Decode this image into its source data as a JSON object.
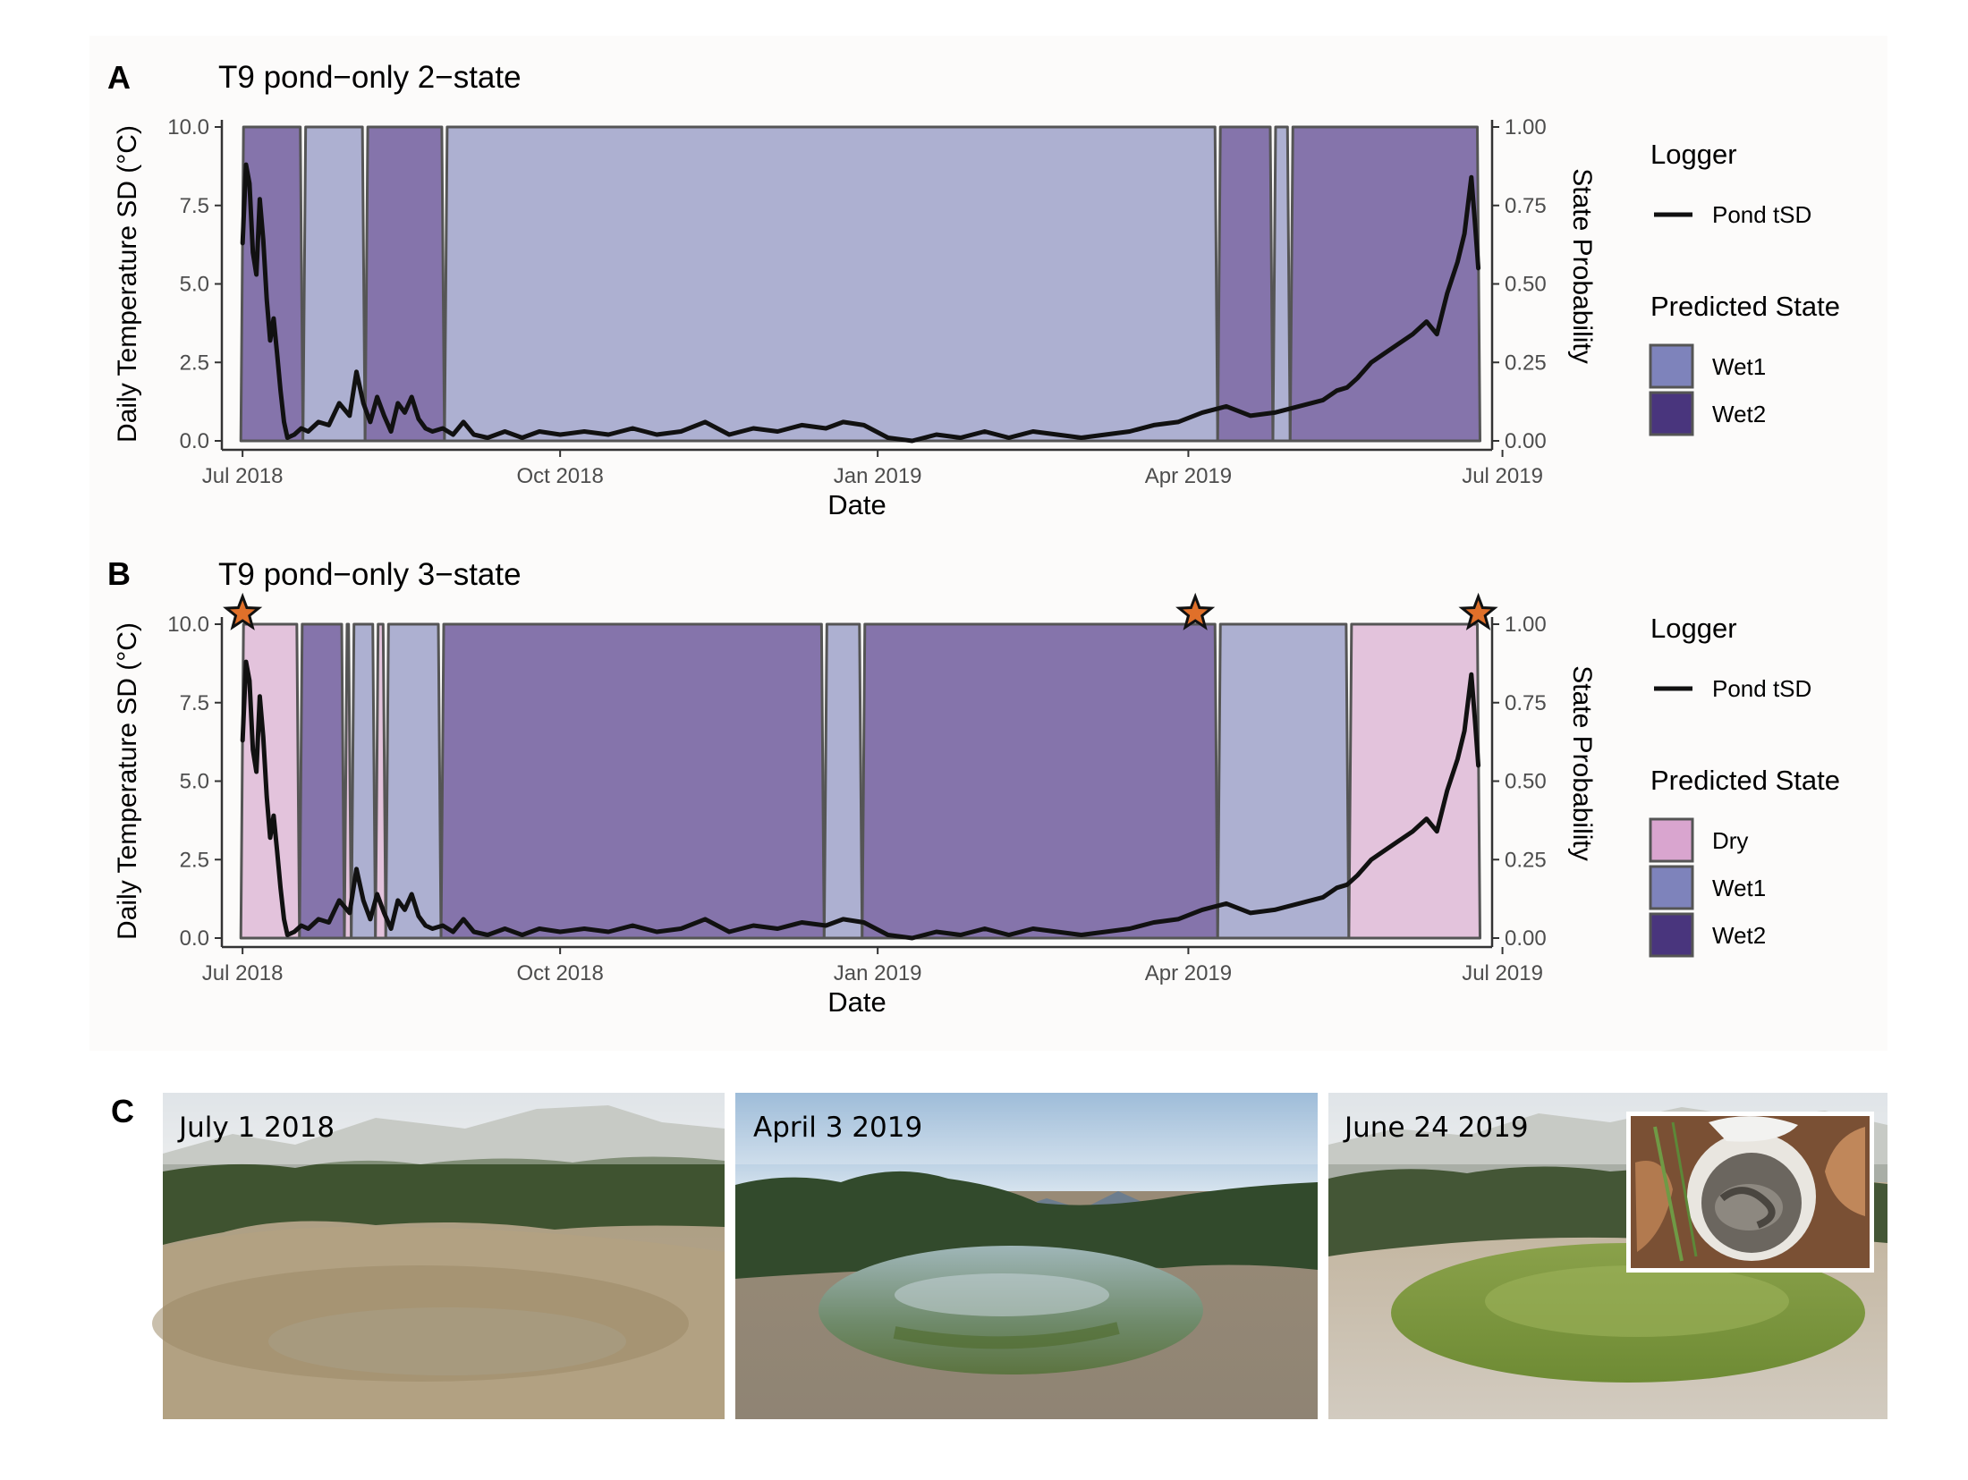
{
  "panels": {
    "a": {
      "letter": "A",
      "title": "T9 pond−only 2−state"
    },
    "b": {
      "letter": "B",
      "title": "T9 pond−only 3−state"
    },
    "c": {
      "letter": "C"
    }
  },
  "axes": {
    "y_left_label": "Daily Temperature SD (°C)",
    "y_right_label": "State Probability",
    "x_label": "Date",
    "x_ticks": [
      "Jul 2018",
      "Oct 2018",
      "Jan 2019",
      "Apr 2019",
      "Jul 2019"
    ],
    "y_left_ticks": [
      "0.0",
      "2.5",
      "5.0",
      "7.5",
      "10.0"
    ],
    "y_right_ticks": [
      "0.00",
      "0.25",
      "0.50",
      "0.75",
      "1.00"
    ]
  },
  "legend": {
    "logger_title": "Logger",
    "logger_item": "Pond tSD",
    "state_title": "Predicted State",
    "states_a": [
      "Wet1",
      "Wet2"
    ],
    "states_b": [
      "Dry",
      "Wet1",
      "Wet2"
    ]
  },
  "colors": {
    "dry": "#e3c3dc",
    "wet1": "#adb0d1",
    "wet2": "#8574ab",
    "wet1_key": "#7e83bb",
    "wet2_key": "#49357d",
    "dry_key": "#d9a5cf",
    "line": "#111111",
    "outline": "#555555",
    "star_fill": "#e0702a"
  },
  "chart_data": [
    {
      "type": "area",
      "title": "T9 pond−only 2−state",
      "xlabel": "Date",
      "ylabel": "Daily Temperature SD (°C)",
      "ylabel_right": "State Probability",
      "xlim": [
        "2018-06-25",
        "2019-06-28"
      ],
      "ylim": [
        0,
        10
      ],
      "ylim_right": [
        0,
        1
      ],
      "line_series": {
        "name": "Pond tSD",
        "x": [
          "2018-07-01",
          "2018-07-02",
          "2018-07-03",
          "2018-07-04",
          "2018-07-05",
          "2018-07-06",
          "2018-07-07",
          "2018-07-08",
          "2018-07-09",
          "2018-07-10",
          "2018-07-11",
          "2018-07-12",
          "2018-07-13",
          "2018-07-14",
          "2018-07-16",
          "2018-07-18",
          "2018-07-20",
          "2018-07-23",
          "2018-07-26",
          "2018-07-29",
          "2018-08-01",
          "2018-08-03",
          "2018-08-05",
          "2018-08-07",
          "2018-08-09",
          "2018-08-11",
          "2018-08-13",
          "2018-08-15",
          "2018-08-17",
          "2018-08-19",
          "2018-08-21",
          "2018-08-23",
          "2018-08-25",
          "2018-08-28",
          "2018-08-31",
          "2018-09-03",
          "2018-09-06",
          "2018-09-10",
          "2018-09-15",
          "2018-09-20",
          "2018-09-25",
          "2018-10-01",
          "2018-10-08",
          "2018-10-15",
          "2018-10-22",
          "2018-10-29",
          "2018-11-05",
          "2018-11-12",
          "2018-11-19",
          "2018-11-26",
          "2018-12-03",
          "2018-12-10",
          "2018-12-17",
          "2018-12-22",
          "2018-12-28",
          "2019-01-04",
          "2019-01-11",
          "2019-01-18",
          "2019-01-25",
          "2019-02-01",
          "2019-02-08",
          "2019-02-15",
          "2019-02-22",
          "2019-03-01",
          "2019-03-08",
          "2019-03-15",
          "2019-03-22",
          "2019-03-29",
          "2019-04-05",
          "2019-04-12",
          "2019-04-19",
          "2019-04-26",
          "2019-05-03",
          "2019-05-10",
          "2019-05-14",
          "2019-05-17",
          "2019-05-20",
          "2019-05-24",
          "2019-05-28",
          "2019-06-01",
          "2019-06-05",
          "2019-06-09",
          "2019-06-12",
          "2019-06-15",
          "2019-06-18",
          "2019-06-20",
          "2019-06-22",
          "2019-06-23",
          "2019-06-24"
        ],
        "y": [
          6.3,
          8.8,
          8.2,
          6.0,
          5.3,
          7.7,
          6.4,
          4.5,
          3.2,
          3.9,
          2.8,
          1.6,
          0.6,
          0.1,
          0.2,
          0.4,
          0.3,
          0.6,
          0.5,
          1.2,
          0.8,
          2.2,
          1.2,
          0.6,
          1.4,
          0.8,
          0.3,
          1.2,
          0.9,
          1.4,
          0.7,
          0.4,
          0.3,
          0.4,
          0.2,
          0.6,
          0.2,
          0.1,
          0.3,
          0.1,
          0.3,
          0.2,
          0.3,
          0.2,
          0.4,
          0.2,
          0.3,
          0.6,
          0.2,
          0.4,
          0.3,
          0.5,
          0.4,
          0.6,
          0.5,
          0.1,
          0.0,
          0.2,
          0.1,
          0.3,
          0.1,
          0.3,
          0.2,
          0.1,
          0.2,
          0.3,
          0.5,
          0.6,
          0.9,
          1.1,
          0.8,
          0.9,
          1.1,
          1.3,
          1.6,
          1.7,
          2.0,
          2.5,
          2.8,
          3.1,
          3.4,
          3.8,
          3.4,
          4.7,
          5.7,
          6.6,
          8.4,
          7.0,
          5.5
        ]
      },
      "states": [
        "Wet1",
        "Wet2"
      ],
      "state_periods": [
        {
          "state": "Wet2",
          "start": "2018-07-01",
          "end": "2018-07-18"
        },
        {
          "state": "Wet1",
          "start": "2018-07-19",
          "end": "2018-08-05"
        },
        {
          "state": "Wet2",
          "start": "2018-08-06",
          "end": "2018-08-28"
        },
        {
          "state": "Wet1",
          "start": "2018-08-29",
          "end": "2019-04-09"
        },
        {
          "state": "Wet2",
          "start": "2019-04-10",
          "end": "2019-04-25"
        },
        {
          "state": "Wet1",
          "start": "2019-04-26",
          "end": "2019-04-30"
        },
        {
          "state": "Wet2",
          "start": "2019-05-01",
          "end": "2019-06-24"
        }
      ]
    },
    {
      "type": "area",
      "title": "T9 pond−only 3−state",
      "xlabel": "Date",
      "ylabel": "Daily Temperature SD (°C)",
      "ylabel_right": "State Probability",
      "xlim": [
        "2018-06-25",
        "2019-06-28"
      ],
      "ylim": [
        0,
        10
      ],
      "ylim_right": [
        0,
        1
      ],
      "line_series": {
        "name": "Pond tSD",
        "same_as": "A"
      },
      "states": [
        "Dry",
        "Wet1",
        "Wet2"
      ],
      "state_periods": [
        {
          "state": "Dry",
          "start": "2018-07-01",
          "end": "2018-07-17"
        },
        {
          "state": "Wet2",
          "start": "2018-07-18",
          "end": "2018-07-30"
        },
        {
          "state": "Dry",
          "start": "2018-07-31",
          "end": "2018-08-01"
        },
        {
          "state": "Wet1",
          "start": "2018-08-02",
          "end": "2018-08-08"
        },
        {
          "state": "Dry",
          "start": "2018-08-09",
          "end": "2018-08-11"
        },
        {
          "state": "Wet1",
          "start": "2018-08-12",
          "end": "2018-08-27"
        },
        {
          "state": "Wet2",
          "start": "2018-08-28",
          "end": "2018-12-16"
        },
        {
          "state": "Wet1",
          "start": "2018-12-17",
          "end": "2018-12-27"
        },
        {
          "state": "Wet2",
          "start": "2018-12-28",
          "end": "2019-04-09"
        },
        {
          "state": "Wet1",
          "start": "2019-04-10",
          "end": "2019-05-17"
        },
        {
          "state": "Dry",
          "start": "2019-05-18",
          "end": "2019-06-24"
        }
      ],
      "markers": [
        {
          "type": "star",
          "date": "2018-07-01"
        },
        {
          "type": "star",
          "date": "2019-04-03"
        },
        {
          "type": "star",
          "date": "2019-06-24"
        }
      ]
    }
  ],
  "photos": [
    {
      "caption": "July 1 2018"
    },
    {
      "caption": "April 3 2019"
    },
    {
      "caption": "June 24 2019"
    }
  ]
}
